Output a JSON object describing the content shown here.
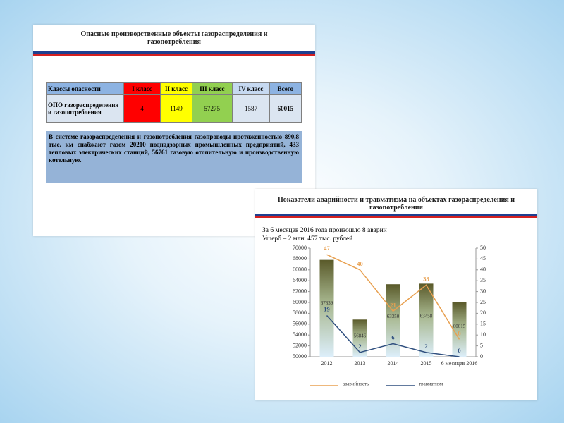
{
  "slide_left": {
    "title": "Опасные производственные объекты газораспределения и газопотребления",
    "table": {
      "header": [
        "Классы опасности",
        "I класс",
        "II класс",
        "III класс",
        "IV класс",
        "Всего"
      ],
      "rows": [
        [
          "ОПО газораспределения и газопотребления",
          "4",
          "1149",
          "57275",
          "1587",
          "60015"
        ]
      ]
    },
    "note": "В системе газораспределения и газопотребления газопроводы протяженностью 890,8 тыс. км снабжают газом 20210 поднадзорных промышленных предприятий, 433 тепловых электрических станций, 56761 газовую отопительную и производственную котельную."
  },
  "chart_data": {
    "type": "bar",
    "title": "Показатели аварийности и травматизма на объектах газораспределения и газопотребления",
    "subtitle": [
      "За 6 месяцев 2016 года произошло 8 аварии",
      "Ущерб – 2 млн. 457 тыс. рублей"
    ],
    "categories": [
      "2012",
      "2013",
      "2014",
      "2015",
      "6 месяцев 2016"
    ],
    "series": [
      {
        "type": "bar",
        "axis": "y",
        "values": [
          67839,
          56846,
          63350,
          63458,
          60015
        ]
      },
      {
        "type": "line",
        "axis": "y2",
        "name": "аварийность",
        "color": "#e8a050",
        "values": [
          47,
          40,
          21,
          33,
          8
        ]
      },
      {
        "type": "line",
        "axis": "y2",
        "name": "травматизм",
        "color": "#2f4f7f",
        "values": [
          19,
          2,
          6,
          2,
          0
        ]
      }
    ],
    "ylim": [
      50000,
      70000
    ],
    "yticks": [
      50000,
      52000,
      54000,
      56000,
      58000,
      60000,
      62000,
      64000,
      66000,
      68000,
      70000
    ],
    "y2lim": [
      0,
      50
    ],
    "y2ticks": [
      0,
      5,
      10,
      15,
      20,
      25,
      30,
      35,
      40,
      45,
      50
    ]
  }
}
